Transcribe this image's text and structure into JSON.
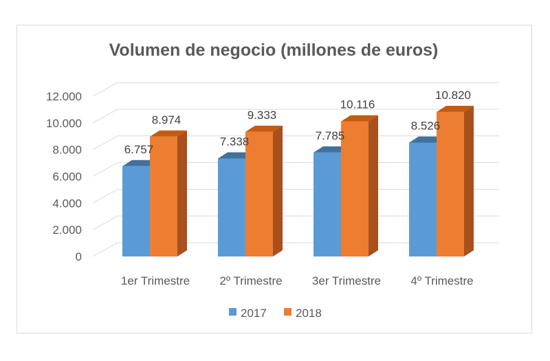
{
  "chart_data": {
    "type": "bar",
    "title": "Volumen de negocio (millones de euros)",
    "categories": [
      "1er Trimestre",
      "2º Trimestre",
      "3er Trimestre",
      "4º Trimestre"
    ],
    "series": [
      {
        "name": "2017",
        "values": [
          6757,
          7338,
          7785,
          8526
        ],
        "labels": [
          "6.757",
          "7.338",
          "7.785",
          "8.526"
        ],
        "color": "#5b9bd5",
        "side": "#3f79ad",
        "top": "#41719c"
      },
      {
        "name": "2018",
        "values": [
          8974,
          9333,
          10116,
          10820
        ],
        "labels": [
          "8.974",
          "9.333",
          "10.116",
          "10.820"
        ],
        "color": "#ed7d31",
        "side": "#a9501c",
        "top": "#c55a11"
      }
    ],
    "yticks": [
      "0",
      "2.000",
      "4.000",
      "6.000",
      "8.000",
      "10.000",
      "12.000"
    ],
    "ylim": [
      0,
      12000
    ],
    "xlabel": "",
    "ylabel": "",
    "grid": true,
    "legend": "bottom"
  }
}
